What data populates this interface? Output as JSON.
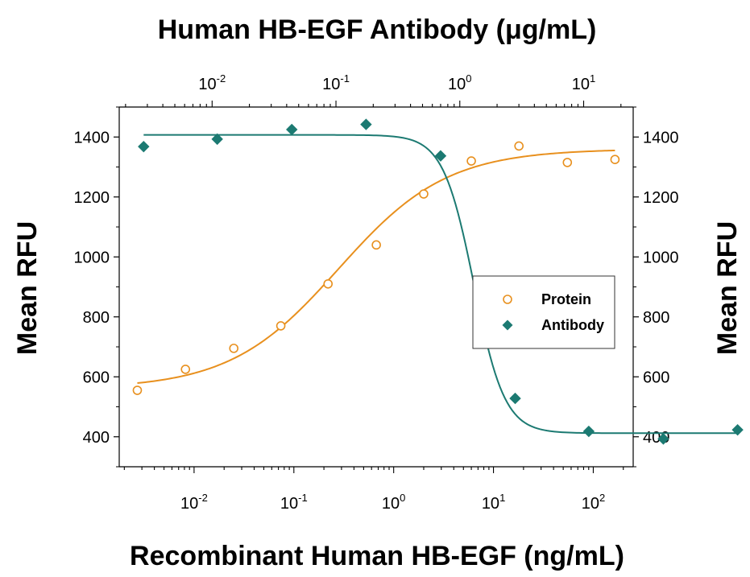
{
  "chart_data": {
    "type": "scatter",
    "top_axis_title": "Human HB-EGF Antibody (μg/mL)",
    "bottom_axis_title": "Recombinant Human HB-EGF (ng/mL)",
    "left_axis_title": "Mean RFU",
    "right_axis_title": "Mean RFU",
    "y_scale": "linear",
    "y_ticks": [
      "400",
      "600",
      "800",
      "1000",
      "1200",
      "1400"
    ],
    "ylim": [
      300,
      1500
    ],
    "bottom_axis": {
      "scale": "log",
      "xlim_log10": [
        -2.75,
        2.4
      ],
      "ticks": [
        {
          "base": "10",
          "exp": "-2",
          "log10": -2
        },
        {
          "base": "10",
          "exp": "-1",
          "log10": -1
        },
        {
          "base": "10",
          "exp": "0",
          "log10": 0
        },
        {
          "base": "10",
          "exp": "1",
          "log10": 1
        },
        {
          "base": "10",
          "exp": "2",
          "log10": 2
        }
      ]
    },
    "top_axis": {
      "scale": "log",
      "xlim_log10": [
        -2.75,
        1.4
      ],
      "ticks": [
        {
          "base": "10",
          "exp": "-2",
          "log10": -2
        },
        {
          "base": "10",
          "exp": "-1",
          "log10": -1
        },
        {
          "base": "10",
          "exp": "0",
          "log10": 0
        },
        {
          "base": "10",
          "exp": "1",
          "log10": 1
        }
      ]
    },
    "legend": {
      "placement": "right",
      "entries": [
        {
          "label": "Protein",
          "marker": "open-circle"
        },
        {
          "label": "Antibody",
          "marker": "filled-diamond"
        }
      ]
    },
    "series": [
      {
        "name": "Protein",
        "axis": "bottom",
        "marker": "open-circle",
        "color": "#E8901E",
        "x": [
          0.0027,
          0.0082,
          0.025,
          0.074,
          0.22,
          0.67,
          2.0,
          6.0,
          18,
          55,
          165
        ],
        "y": [
          555,
          625,
          695,
          770,
          910,
          1040,
          1210,
          1320,
          1370,
          1315,
          1325
        ],
        "fit": {
          "bottom": 560,
          "top": 1360,
          "ec50": 0.28,
          "hill": 0.8,
          "x_range": [
            0.0027,
            165
          ]
        }
      },
      {
        "name": "Antibody",
        "axis": "top",
        "marker": "filled-diamond",
        "color": "#1C7A72",
        "x": [
          0.0028,
          0.011,
          0.044,
          0.175,
          0.7,
          2.8,
          11,
          44,
          175
        ],
        "y": [
          1368,
          1393,
          1425,
          1442,
          1337,
          528,
          418,
          393,
          423
        ],
        "fit": {
          "bottom": 412,
          "top": 1407,
          "ec50": 1.3,
          "hill": 3.5,
          "x_range": [
            0.0028,
            175
          ]
        }
      }
    ]
  }
}
